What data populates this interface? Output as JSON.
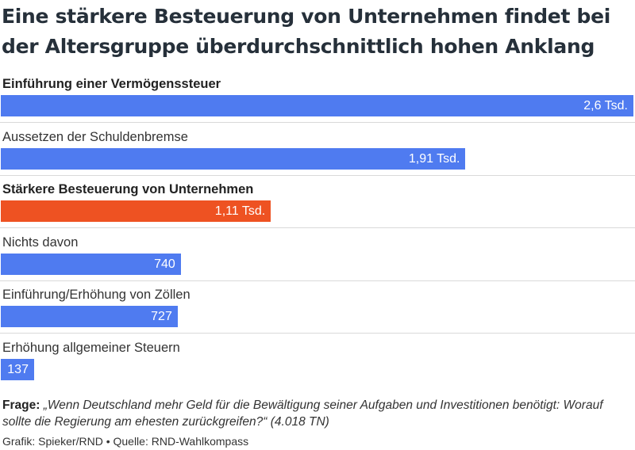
{
  "chart_data": {
    "type": "bar",
    "orientation": "horizontal",
    "title": "Eine stärkere Besteuerung von Unternehmen findet bei der Altersgruppe überdurchschnittlich hohen Anklang",
    "categories": [
      "Einführung einer Vermögenssteuer",
      "Aussetzen der Schuldenbremse",
      "Stärkere Besteuerung von Unternehmen",
      "Nichts davon",
      "Einführung/Erhöhung von Zöllen",
      "Erhöhung allgemeiner Steuern"
    ],
    "values": [
      2600,
      1910,
      1110,
      740,
      727,
      137
    ],
    "value_labels": [
      "2,6 Tsd.",
      "1,91 Tsd.",
      "1,11 Tsd.",
      "740",
      "727",
      "137"
    ],
    "bold_categories": [
      true,
      false,
      true,
      false,
      false,
      false
    ],
    "bar_colors": [
      "#4f7bf0",
      "#4f7bf0",
      "#ee5222",
      "#4f7bf0",
      "#4f7bf0",
      "#4f7bf0"
    ],
    "xlim": [
      0,
      2600
    ],
    "grid": false,
    "legend": "none"
  },
  "colors": {
    "default_bar": "#4f7bf0",
    "highlight_bar": "#ee5222"
  },
  "footer": {
    "question_label": "Frage:",
    "question_text": "„Wenn Deutschland mehr Geld für die Bewältigung seiner Aufgaben und Investitionen benötigt: Worauf sollte die Regierung am ehesten zurückgreifen?“",
    "respondents": "(4.018 TN)",
    "credits": "Grafik: Spieker/RND • Quelle: RND-Wahlkompass"
  }
}
